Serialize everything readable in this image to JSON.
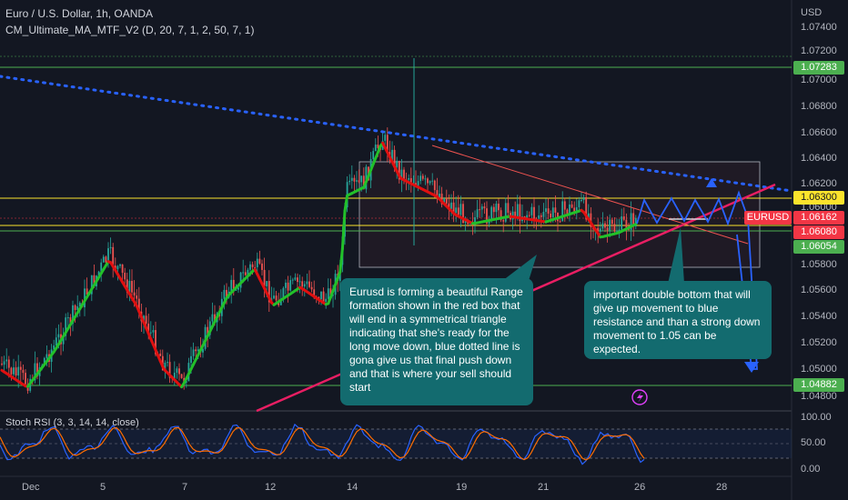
{
  "header": {
    "symbol_line": "Euro / U.S. Dollar, 1h, OANDA",
    "indicator_line": "CM_Ultimate_MA_MTF_V2 (D, 20, 7, 1, 2, 50, 7, 1)",
    "stoch_label": "Stoch RSI (3, 3, 14, 14, close)",
    "currency": "USD"
  },
  "price_axis": {
    "ticks": [
      "1.07400",
      "1.07200",
      "1.07000",
      "1.06800",
      "1.06600",
      "1.06400",
      "1.06200",
      "1.06000",
      "1.05800",
      "1.05600",
      "1.05400",
      "1.05200",
      "1.05000",
      "1.04800"
    ],
    "tags": [
      {
        "text": "1.07283",
        "bg": "#4caf50",
        "fg": "#ffffff"
      },
      {
        "text": "1.06300",
        "bg": "#fbe32c",
        "fg": "#131722"
      },
      {
        "text": "1.06162",
        "bg": "#f23645",
        "fg": "#ffffff"
      },
      {
        "text": "1.06080",
        "bg": "#f23645",
        "fg": "#ffffff"
      },
      {
        "text": "1.06054",
        "bg": "#4caf50",
        "fg": "#ffffff"
      },
      {
        "text": "1.04882",
        "bg": "#4caf50",
        "fg": "#ffffff"
      }
    ],
    "symbol_tag": {
      "text": "EURUSD",
      "bg": "#f23645",
      "fg": "#ffffff"
    }
  },
  "stoch_axis": {
    "ticks": [
      "100.00",
      "50.00",
      "0.00"
    ]
  },
  "time_axis": {
    "labels": [
      "Dec",
      "5",
      "7",
      "12",
      "14",
      "19",
      "21",
      "26",
      "28"
    ]
  },
  "annotations": {
    "left_note": "Eurusd is forming a beautiful Range formation shown in the red box that will end in a symmetrical triangle indicating that she's ready for the long move down, blue dotted line is gona give us that final push down and that is where your sell should start",
    "right_note": "important double bottom that will give up movement to blue resistance and than a strong down movement to 1.05 can be expected."
  },
  "colors": {
    "background": "#131722",
    "bull": "#26a69a",
    "bear": "#ef5350",
    "ma_up": "#22c02a",
    "ma_down": "#e01010",
    "trendline_blue": "#2962ff",
    "trendline_pink": "#e91e63",
    "hline_yellow": "#fbe32c",
    "hline_green": "#4caf50",
    "note_bg": "#136b6f",
    "stoch_k": "#2962ff",
    "stoch_d": "#ff6d00"
  }
}
